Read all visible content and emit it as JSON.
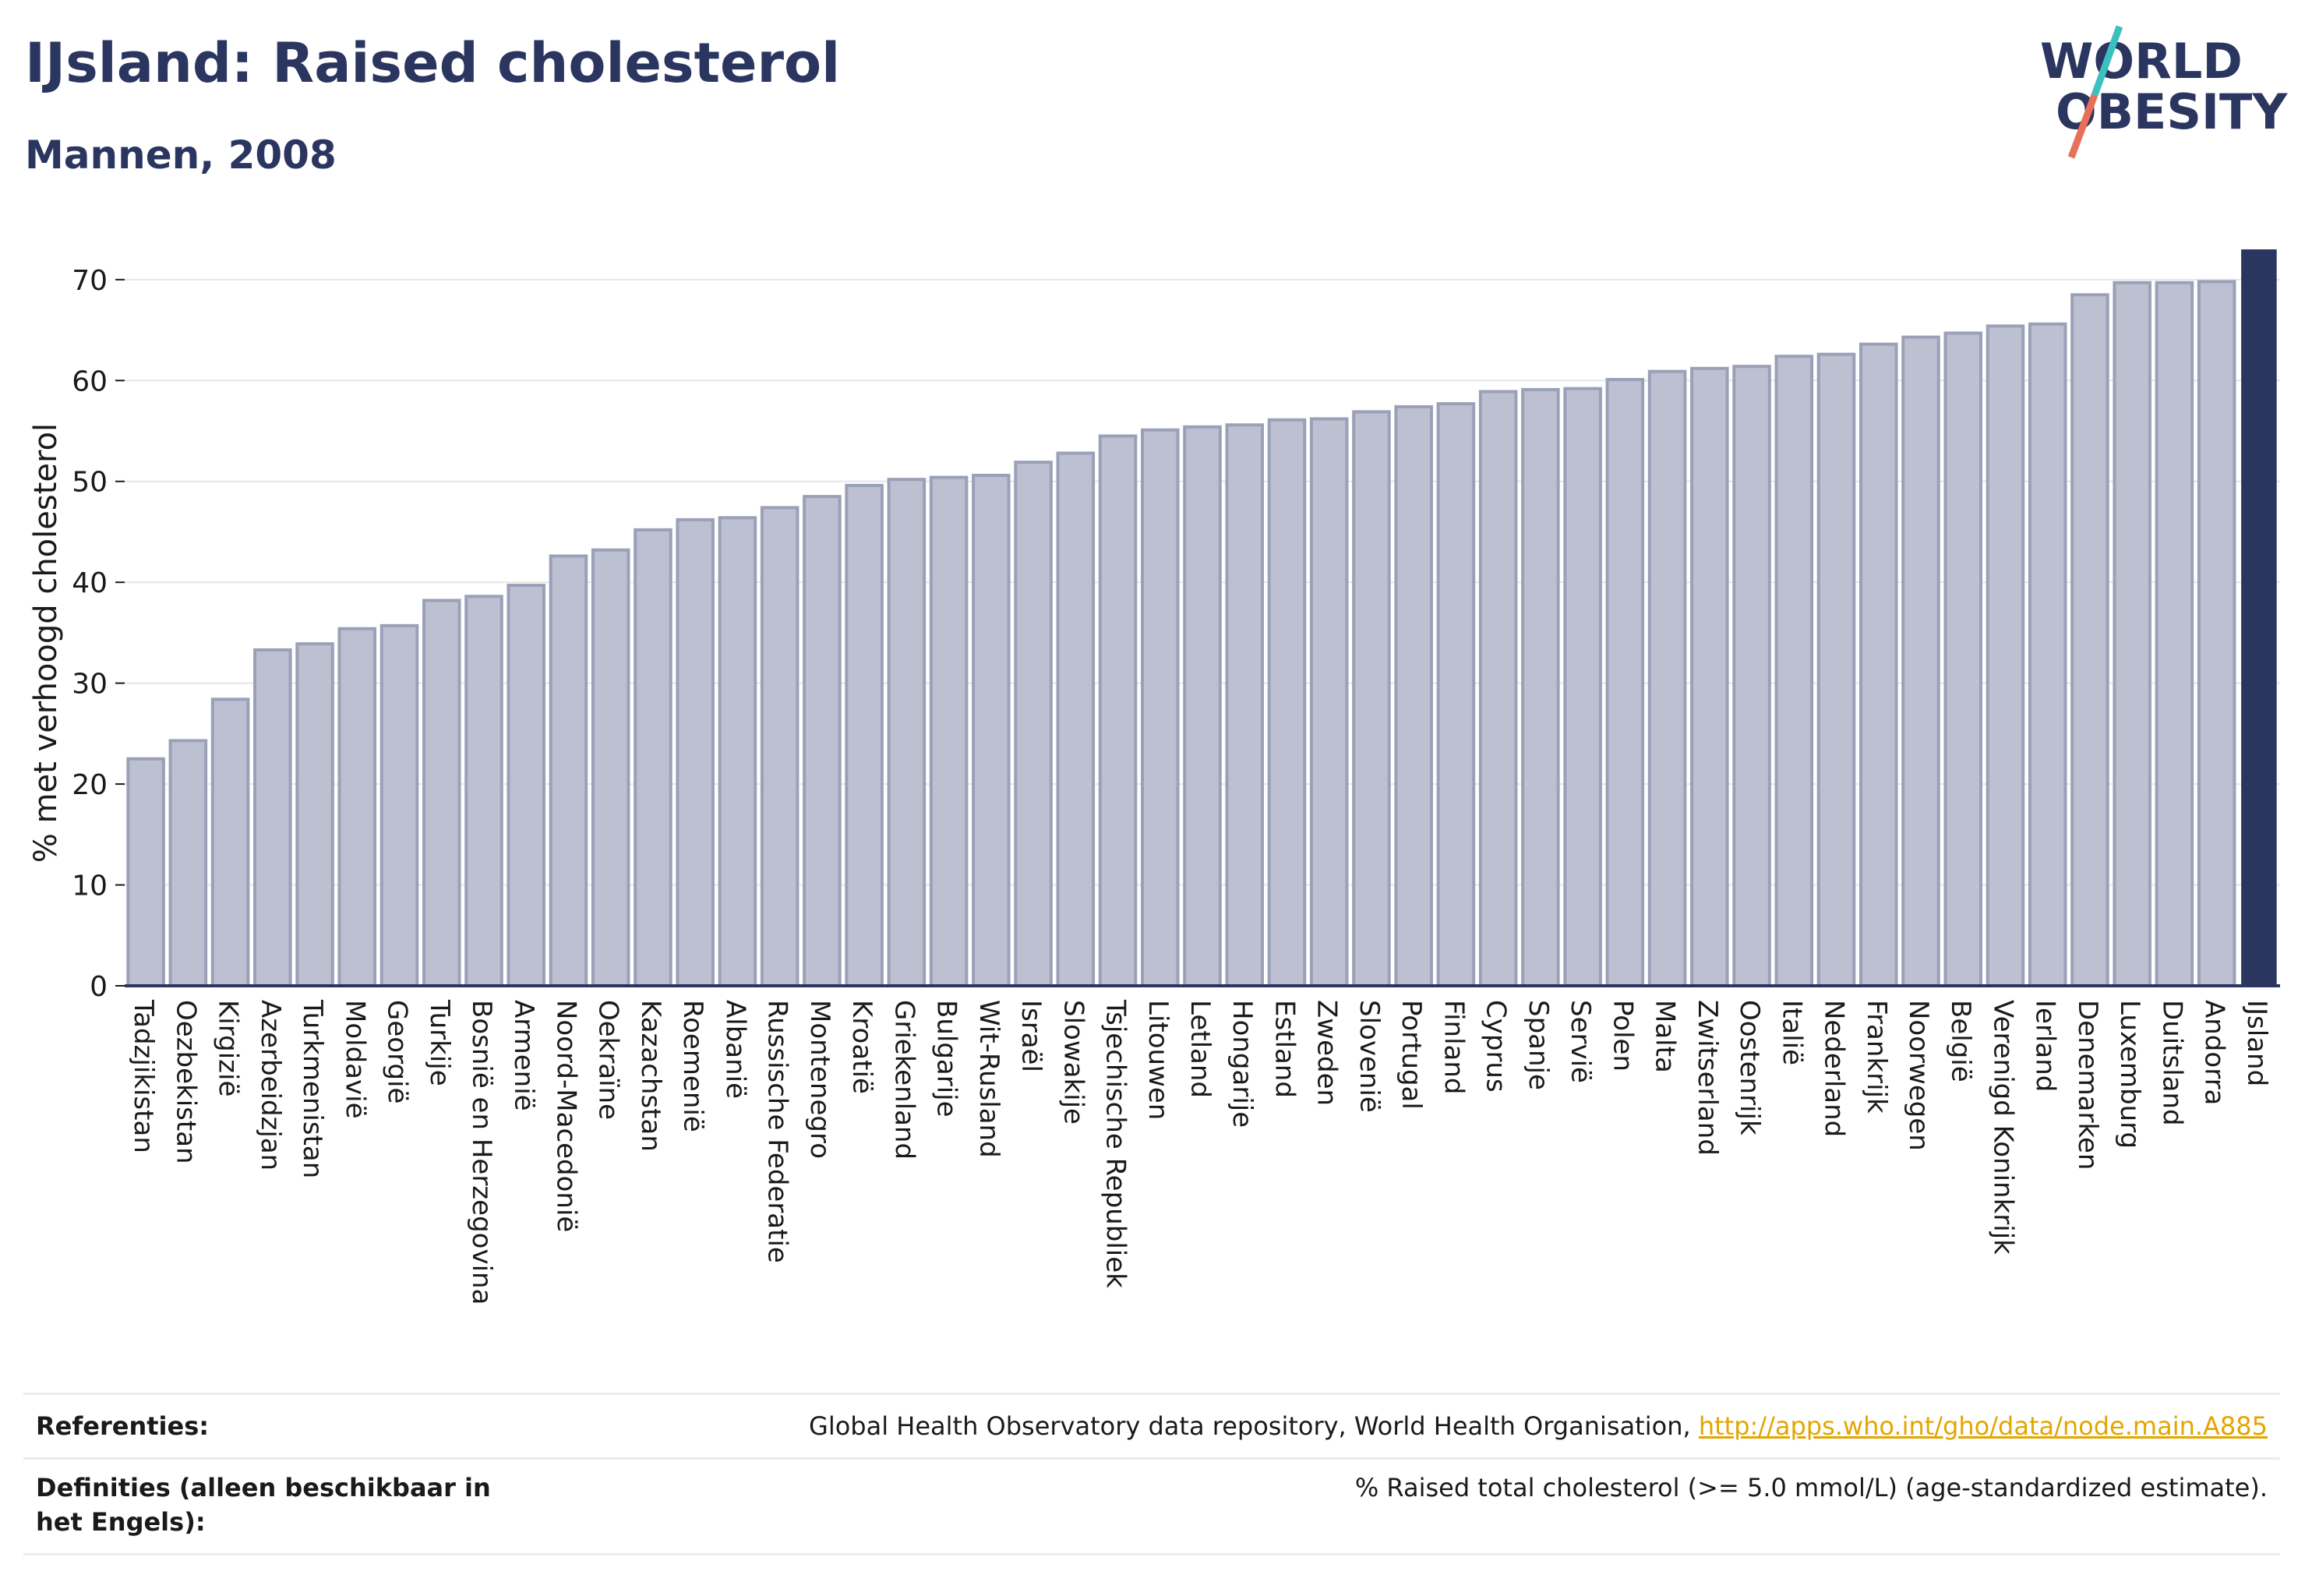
{
  "header": {
    "title": "IJsland: Raised cholesterol",
    "subtitle": "Mannen, 2008"
  },
  "logo": {
    "line1": "WORLD",
    "line2": "OBESITY",
    "color_text": "#2b3660",
    "color_slash_top": "#3cbfbf",
    "color_slash_bottom": "#e8705a"
  },
  "colors": {
    "bar_fill": "#bcc0d0",
    "bar_stroke": "#9aa0b8",
    "highlight": "#2b3660",
    "grid": "#e6e6e6",
    "axis": "#2b3660"
  },
  "chart_data": {
    "type": "bar",
    "ylabel": "% met verhoogd cholesterol",
    "ylim": [
      0,
      73
    ],
    "yticks": [
      0,
      10,
      20,
      30,
      40,
      50,
      60,
      70
    ],
    "grid": true,
    "highlight": "IJsland",
    "categories": [
      "Tadzjikistan",
      "Oezbekistan",
      "Kirgizië",
      "Azerbeidzjan",
      "Turkmenistan",
      "Moldavië",
      "Georgië",
      "Turkije",
      "Bosnië en Herzegovina",
      "Armenië",
      "Noord-Macedonië",
      "Oekraïne",
      "Kazachstan",
      "Roemenië",
      "Albanië",
      "Russische Federatie",
      "Montenegro",
      "Kroatië",
      "Griekenland",
      "Bulgarije",
      "Wit-Rusland",
      "Israël",
      "Slowakije",
      "Tsjechische Republiek",
      "Litouwen",
      "Letland",
      "Hongarije",
      "Estland",
      "Zweden",
      "Slovenië",
      "Portugal",
      "Finland",
      "Cyprus",
      "Spanje",
      "Servië",
      "Polen",
      "Malta",
      "Zwitserland",
      "Oostenrijk",
      "Italië",
      "Nederland",
      "Frankrijk",
      "Noorwegen",
      "België",
      "Verenigd Koninkrijk",
      "Ierland",
      "Denemarken",
      "Luxemburg",
      "Duitsland",
      "Andorra",
      "IJsland"
    ],
    "values": [
      22.5,
      24.3,
      28.4,
      33.3,
      33.9,
      35.4,
      35.7,
      38.2,
      38.6,
      39.7,
      42.6,
      43.2,
      45.2,
      46.2,
      46.4,
      47.4,
      48.5,
      49.6,
      50.2,
      50.4,
      50.6,
      51.9,
      52.8,
      54.5,
      55.1,
      55.4,
      55.6,
      56.1,
      56.2,
      56.9,
      57.4,
      57.7,
      58.9,
      59.1,
      59.2,
      60.1,
      60.9,
      61.2,
      61.4,
      62.4,
      62.6,
      63.6,
      64.3,
      64.7,
      65.4,
      65.6,
      68.5,
      69.7,
      69.7,
      69.8,
      73.0
    ]
  },
  "footer": {
    "references_label": "Referenties:",
    "references_text": "Global Health Observatory data repository, World Health Organisation, ",
    "references_link": "http://apps.who.int/gho/data/node.main.A885",
    "definitions_label": "Definities (alleen beschikbaar in het Engels):",
    "definitions_text": "% Raised total cholesterol (>= 5.0 mmol/L) (age-standardized estimate)."
  }
}
